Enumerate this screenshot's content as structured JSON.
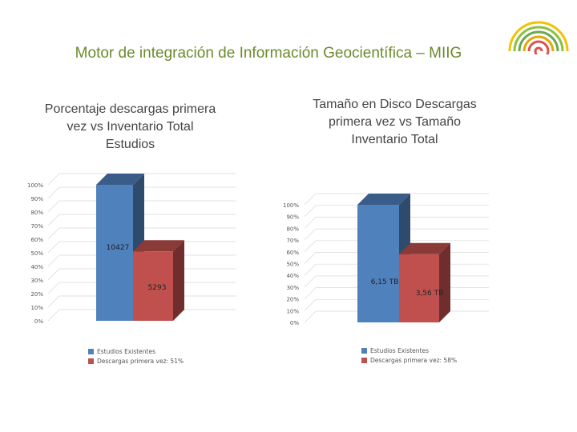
{
  "page": {
    "title": "Motor de integración de Información Geocientífica – MIIG"
  },
  "colors": {
    "series1": "#4f81bd",
    "series2": "#c0504d",
    "title": "#6c8a2e"
  },
  "chart_data": [
    {
      "type": "bar",
      "title": "Porcentaje descargas primera\nvez vs Inventario Total\nEstudios",
      "yticks": [
        "0%",
        "10%",
        "20%",
        "30%",
        "40%",
        "50%",
        "60%",
        "70%",
        "80%",
        "90%",
        "100%"
      ],
      "ylim": [
        0,
        100
      ],
      "grid": true,
      "legend": "bottom-left",
      "series": [
        {
          "name": "Estudios Existentes",
          "value": 100,
          "label": "10427"
        },
        {
          "name": "Descargas primera vez: 51%",
          "value": 51,
          "label": "5293"
        }
      ]
    },
    {
      "type": "bar",
      "title": "Tamaño en Disco Descargas\nprimera vez vs Tamaño\nInventario Total",
      "yticks": [
        "0%",
        "10%",
        "20%",
        "30%",
        "40%",
        "50%",
        "60%",
        "70%",
        "80%",
        "90%",
        "100%"
      ],
      "ylim": [
        0,
        100
      ],
      "grid": true,
      "legend": "bottom-left",
      "series": [
        {
          "name": "Estudios Existentes",
          "value": 100,
          "label": "6,15 TB"
        },
        {
          "name": "Descargas primera vez: 58%",
          "value": 58,
          "label": "3,56 TB"
        }
      ]
    }
  ]
}
